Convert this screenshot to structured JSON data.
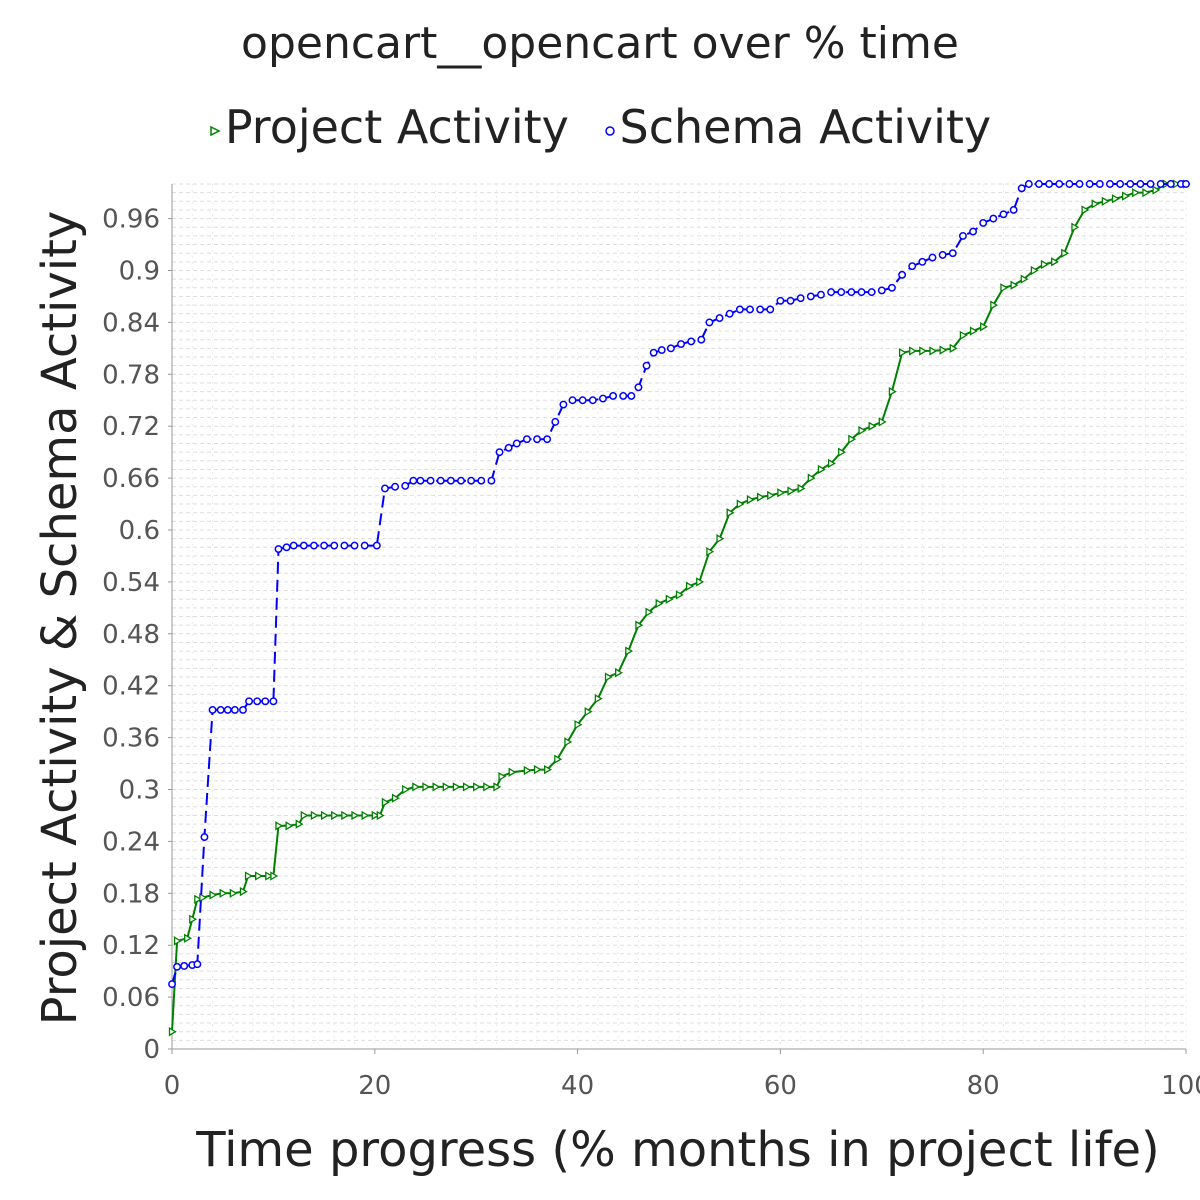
{
  "chart_data": {
    "type": "line",
    "title": "opencart__opencart over % time",
    "xlabel": "Time progress (% months in project life)",
    "ylabel": "Project Activity & Schema Activity",
    "xlim": [
      0,
      100
    ],
    "ylim": [
      0,
      1.0
    ],
    "x_ticks": [
      "0",
      "20",
      "40",
      "60",
      "80",
      "100"
    ],
    "y_ticks": [
      "0",
      "0.06",
      "0.12",
      "0.18",
      "0.24",
      "0.3",
      "0.36",
      "0.42",
      "0.48",
      "0.54",
      "0.6",
      "0.66",
      "0.72",
      "0.78",
      "0.84",
      "0.9",
      "0.96"
    ],
    "grid": true,
    "legend_placement": "top",
    "series": [
      {
        "name": "Project Activity",
        "color": "#008000",
        "marker": "triangle-right",
        "line_style": "solid",
        "points": [
          [
            0,
            0.02
          ],
          [
            0.5,
            0.125
          ],
          [
            1.5,
            0.128
          ],
          [
            2,
            0.15
          ],
          [
            2.5,
            0.173
          ],
          [
            3,
            0.175
          ],
          [
            4,
            0.178
          ],
          [
            5,
            0.18
          ],
          [
            6,
            0.18
          ],
          [
            7,
            0.182
          ],
          [
            7.5,
            0.2
          ],
          [
            8.5,
            0.2
          ],
          [
            9.5,
            0.2
          ],
          [
            10,
            0.2
          ],
          [
            10.5,
            0.258
          ],
          [
            11.5,
            0.258
          ],
          [
            12.5,
            0.26
          ],
          [
            13,
            0.27
          ],
          [
            14,
            0.27
          ],
          [
            15,
            0.27
          ],
          [
            16,
            0.27
          ],
          [
            17,
            0.27
          ],
          [
            18,
            0.27
          ],
          [
            19,
            0.27
          ],
          [
            20,
            0.27
          ],
          [
            20.5,
            0.27
          ],
          [
            21,
            0.285
          ],
          [
            22,
            0.29
          ],
          [
            23,
            0.3
          ],
          [
            24,
            0.303
          ],
          [
            25,
            0.303
          ],
          [
            26,
            0.303
          ],
          [
            27,
            0.303
          ],
          [
            28,
            0.303
          ],
          [
            29,
            0.303
          ],
          [
            30,
            0.303
          ],
          [
            31,
            0.303
          ],
          [
            32,
            0.303
          ],
          [
            32.5,
            0.315
          ],
          [
            33.5,
            0.32
          ],
          [
            35,
            0.322
          ],
          [
            36,
            0.323
          ],
          [
            37,
            0.323
          ],
          [
            38,
            0.335
          ],
          [
            39,
            0.355
          ],
          [
            40,
            0.375
          ],
          [
            41,
            0.39
          ],
          [
            42,
            0.405
          ],
          [
            43,
            0.43
          ],
          [
            44,
            0.435
          ],
          [
            45,
            0.46
          ],
          [
            46,
            0.49
          ],
          [
            47,
            0.505
          ],
          [
            48,
            0.515
          ],
          [
            49,
            0.52
          ],
          [
            50,
            0.525
          ],
          [
            51,
            0.535
          ],
          [
            52,
            0.54
          ],
          [
            53,
            0.575
          ],
          [
            54,
            0.59
          ],
          [
            55,
            0.62
          ],
          [
            56,
            0.63
          ],
          [
            57,
            0.635
          ],
          [
            58,
            0.638
          ],
          [
            59,
            0.64
          ],
          [
            60,
            0.643
          ],
          [
            61,
            0.645
          ],
          [
            62,
            0.648
          ],
          [
            63,
            0.66
          ],
          [
            64,
            0.67
          ],
          [
            65,
            0.677
          ],
          [
            66,
            0.69
          ],
          [
            67,
            0.705
          ],
          [
            68,
            0.715
          ],
          [
            69,
            0.72
          ],
          [
            70,
            0.725
          ],
          [
            71,
            0.76
          ],
          [
            72,
            0.805
          ],
          [
            73,
            0.807
          ],
          [
            74,
            0.807
          ],
          [
            75,
            0.807
          ],
          [
            76,
            0.808
          ],
          [
            77,
            0.81
          ],
          [
            78,
            0.825
          ],
          [
            79,
            0.83
          ],
          [
            80,
            0.835
          ],
          [
            81,
            0.86
          ],
          [
            82,
            0.88
          ],
          [
            83,
            0.883
          ],
          [
            84,
            0.89
          ],
          [
            85,
            0.9
          ],
          [
            86,
            0.907
          ],
          [
            87,
            0.91
          ],
          [
            88,
            0.92
          ],
          [
            89,
            0.95
          ],
          [
            90,
            0.97
          ],
          [
            91,
            0.977
          ],
          [
            92,
            0.98
          ],
          [
            93,
            0.983
          ],
          [
            94,
            0.986
          ],
          [
            95,
            0.99
          ],
          [
            96,
            0.99
          ],
          [
            97,
            0.993
          ],
          [
            98,
            1.0
          ],
          [
            99,
            1.0
          ],
          [
            100,
            1.0
          ]
        ]
      },
      {
        "name": "Schema Activity",
        "color": "#0000ff",
        "marker": "circle",
        "line_style": "dashed",
        "points": [
          [
            0,
            0.075
          ],
          [
            0.5,
            0.095
          ],
          [
            1.2,
            0.096
          ],
          [
            2,
            0.097
          ],
          [
            2.5,
            0.098
          ],
          [
            3.2,
            0.245
          ],
          [
            4,
            0.392
          ],
          [
            4.8,
            0.392
          ],
          [
            5.5,
            0.392
          ],
          [
            6.2,
            0.392
          ],
          [
            7,
            0.392
          ],
          [
            7.6,
            0.402
          ],
          [
            8.4,
            0.402
          ],
          [
            9.2,
            0.402
          ],
          [
            10,
            0.402
          ],
          [
            10.5,
            0.578
          ],
          [
            11.3,
            0.58
          ],
          [
            12,
            0.582
          ],
          [
            13,
            0.582
          ],
          [
            14,
            0.582
          ],
          [
            15,
            0.582
          ],
          [
            16,
            0.582
          ],
          [
            17,
            0.582
          ],
          [
            18,
            0.582
          ],
          [
            19,
            0.582
          ],
          [
            20.2,
            0.582
          ],
          [
            21,
            0.648
          ],
          [
            22,
            0.65
          ],
          [
            23,
            0.651
          ],
          [
            23.8,
            0.657
          ],
          [
            24.5,
            0.657
          ],
          [
            25.5,
            0.657
          ],
          [
            26.5,
            0.657
          ],
          [
            27.5,
            0.657
          ],
          [
            28.5,
            0.657
          ],
          [
            29.5,
            0.657
          ],
          [
            30.5,
            0.657
          ],
          [
            31.5,
            0.657
          ],
          [
            32.3,
            0.69
          ],
          [
            33.2,
            0.695
          ],
          [
            34,
            0.7
          ],
          [
            35,
            0.705
          ],
          [
            36,
            0.705
          ],
          [
            37,
            0.705
          ],
          [
            37.8,
            0.725
          ],
          [
            38.6,
            0.745
          ],
          [
            39.5,
            0.75
          ],
          [
            40.5,
            0.75
          ],
          [
            41.5,
            0.75
          ],
          [
            42.5,
            0.752
          ],
          [
            43.5,
            0.755
          ],
          [
            44.5,
            0.755
          ],
          [
            45.3,
            0.755
          ],
          [
            46,
            0.765
          ],
          [
            46.8,
            0.79
          ],
          [
            47.5,
            0.805
          ],
          [
            48.3,
            0.808
          ],
          [
            49.2,
            0.81
          ],
          [
            50.2,
            0.815
          ],
          [
            51.2,
            0.818
          ],
          [
            52.2,
            0.82
          ],
          [
            53,
            0.84
          ],
          [
            54,
            0.845
          ],
          [
            55,
            0.85
          ],
          [
            56,
            0.855
          ],
          [
            57,
            0.855
          ],
          [
            58,
            0.855
          ],
          [
            59,
            0.855
          ],
          [
            60,
            0.865
          ],
          [
            61,
            0.865
          ],
          [
            62,
            0.868
          ],
          [
            63,
            0.87
          ],
          [
            64,
            0.872
          ],
          [
            65,
            0.875
          ],
          [
            66,
            0.875
          ],
          [
            67,
            0.875
          ],
          [
            68,
            0.875
          ],
          [
            69,
            0.875
          ],
          [
            70,
            0.877
          ],
          [
            71,
            0.88
          ],
          [
            72,
            0.895
          ],
          [
            73,
            0.905
          ],
          [
            74,
            0.91
          ],
          [
            75,
            0.915
          ],
          [
            76,
            0.918
          ],
          [
            77,
            0.92
          ],
          [
            78,
            0.94
          ],
          [
            79,
            0.945
          ],
          [
            80,
            0.955
          ],
          [
            81,
            0.96
          ],
          [
            82,
            0.965
          ],
          [
            83,
            0.97
          ],
          [
            83.8,
            0.995
          ],
          [
            84.5,
            1.0
          ],
          [
            85.5,
            1.0
          ],
          [
            86.5,
            1.0
          ],
          [
            87.5,
            1.0
          ],
          [
            88.5,
            1.0
          ],
          [
            89.5,
            1.0
          ],
          [
            90.5,
            1.0
          ],
          [
            91.5,
            1.0
          ],
          [
            92.5,
            1.0
          ],
          [
            93.5,
            1.0
          ],
          [
            94.5,
            1.0
          ],
          [
            95.5,
            1.0
          ],
          [
            96.5,
            1.0
          ],
          [
            97.5,
            1.0
          ],
          [
            98.5,
            1.0
          ],
          [
            99.5,
            1.0
          ],
          [
            100,
            1.0
          ]
        ]
      }
    ]
  }
}
